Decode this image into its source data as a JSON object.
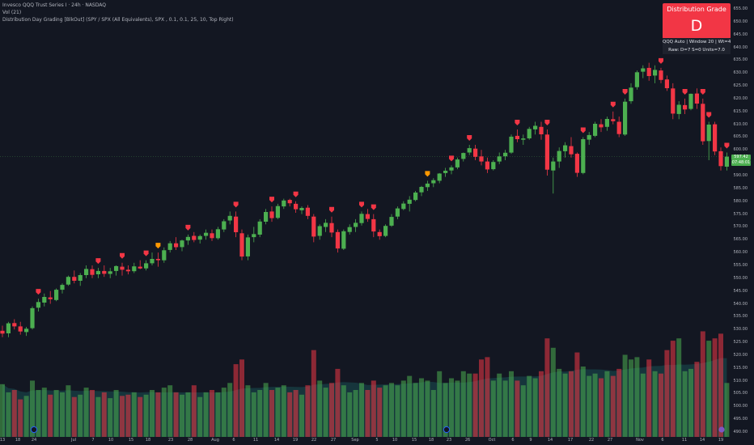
{
  "header": {
    "symbol_line": "Invesco QQQ Trust Series I · 24h · NASDAQ",
    "vol_line": "Vol (21)",
    "indicator_line": "Distribution Day Grading [BlkOut] (SPY / SPX (All Equivalents), SPX , 0.1, 0.1, 25, 10, Top Right)"
  },
  "grade_panel": {
    "title": "Distribution Grade",
    "grade": "D",
    "info_line": "QQQ Auto | Window 20 | Wt=4.35",
    "raw_line": "Raw: D=7 S=0 Units=7.0"
  },
  "price_axis": {
    "ticks": [
      "655.00",
      "650.00",
      "645.00",
      "640.00",
      "635.00",
      "630.00",
      "625.00",
      "620.00",
      "615.00",
      "610.00",
      "605.00",
      "600.00",
      "595.00",
      "590.00",
      "585.00",
      "580.00",
      "575.00",
      "570.00",
      "565.00",
      "560.00",
      "555.00",
      "550.00",
      "545.00",
      "540.00",
      "535.00",
      "530.00",
      "525.00",
      "520.00",
      "515.00",
      "510.00",
      "505.00",
      "500.00",
      "495.00",
      "490.00"
    ],
    "last_price": "597.42",
    "countdown": "07:48:01"
  },
  "time_axis": {
    "labels": [
      "13",
      "18",
      "24",
      "Jul",
      "7",
      "10",
      "15",
      "18",
      "23",
      "28",
      "Aug",
      "6",
      "11",
      "14",
      "19",
      "22",
      "27",
      "Sep",
      "5",
      "10",
      "15",
      "18",
      "23",
      "26",
      "Oct",
      "6",
      "9",
      "14",
      "17",
      "22",
      "27",
      "Nov",
      "6",
      "11",
      "14",
      "19"
    ]
  },
  "colors": {
    "background": "#131722",
    "up": "#4caf50",
    "down": "#f23645",
    "distribution_marker": "#f23645",
    "stall_marker": "#ff9800",
    "grade_box": "#f23645"
  },
  "chart_data": {
    "type": "candlestick",
    "y_range": [
      490,
      655
    ],
    "candles": [
      [
        529.5,
        531.5,
        527,
        528.4
      ],
      [
        528.5,
        533,
        527,
        532.4
      ],
      [
        532.5,
        534,
        530,
        531.2
      ],
      [
        531.2,
        533,
        528,
        529.2
      ],
      [
        529,
        531,
        527.5,
        530.3
      ],
      [
        530.5,
        539,
        530,
        538.3
      ],
      [
        538.5,
        542,
        537,
        540.7
      ],
      [
        540.5,
        544,
        539,
        542.7
      ],
      [
        542.5,
        545,
        540,
        541.8
      ],
      [
        541.5,
        546,
        541,
        545.5
      ],
      [
        545.5,
        548,
        544,
        547.4
      ],
      [
        547.5,
        551,
        547,
        550.5
      ],
      [
        550.5,
        553,
        548,
        549
      ],
      [
        549,
        552,
        547,
        551.2
      ],
      [
        551.2,
        555,
        550,
        553.6
      ],
      [
        553.5,
        555,
        550,
        551.3
      ],
      [
        551.5,
        554,
        550,
        552.8
      ],
      [
        552.8,
        555,
        550.5,
        551.7
      ],
      [
        551.7,
        554,
        550,
        552.7
      ],
      [
        552.8,
        555,
        551,
        554.7
      ],
      [
        554.5,
        556,
        551,
        553.3
      ],
      [
        553.3,
        555,
        551.5,
        552.7
      ],
      [
        552.7,
        556,
        552,
        554.6
      ],
      [
        554.5,
        557,
        553.5,
        553.8
      ],
      [
        553.8,
        557,
        553,
        555.8
      ],
      [
        555.8,
        560,
        555,
        557.5
      ],
      [
        557.5,
        560,
        554.5,
        557
      ],
      [
        557,
        562,
        556,
        560.9
      ],
      [
        561,
        564.5,
        560,
        563.6
      ],
      [
        563.6,
        566,
        561,
        562.1
      ],
      [
        562.1,
        565,
        560.5,
        564.7
      ],
      [
        564.7,
        567,
        563,
        566.1
      ],
      [
        566.5,
        568,
        564,
        564.9
      ],
      [
        565,
        567,
        563.5,
        566.4
      ],
      [
        566.5,
        569,
        565,
        567.7
      ],
      [
        567.5,
        569,
        564.5,
        565.6
      ],
      [
        565.6,
        570,
        565,
        569.1
      ],
      [
        569,
        573,
        568,
        572.2
      ],
      [
        572.5,
        576,
        571,
        574.3
      ],
      [
        574,
        576,
        566,
        567.9
      ],
      [
        567.5,
        569,
        557,
        558.4
      ],
      [
        558.5,
        567,
        557,
        565.9
      ],
      [
        566,
        570,
        564,
        567.2
      ],
      [
        567,
        573,
        566,
        572.1
      ],
      [
        572,
        577,
        571,
        575.8
      ],
      [
        576,
        578,
        572,
        573.4
      ],
      [
        573.5,
        579,
        573,
        578.1
      ],
      [
        578,
        581,
        577,
        580.3
      ],
      [
        580.5,
        581,
        578,
        579.2
      ],
      [
        579,
        580,
        575.5,
        576.9
      ],
      [
        576.5,
        578,
        575,
        577.4
      ],
      [
        577.5,
        578.5,
        573,
        574.3
      ],
      [
        574,
        575,
        564,
        566.2
      ],
      [
        566.5,
        571,
        565,
        570.3
      ],
      [
        570,
        573,
        568,
        571.6
      ],
      [
        571.5,
        574,
        566,
        567.8
      ],
      [
        568,
        569,
        560,
        561.6
      ],
      [
        561.5,
        569,
        561,
        568.3
      ],
      [
        568,
        571,
        567,
        569.9
      ],
      [
        570,
        573,
        568,
        571.6
      ],
      [
        571.5,
        576,
        570.5,
        575.1
      ],
      [
        575,
        577,
        572,
        573.1
      ],
      [
        573,
        575,
        566,
        568.2
      ],
      [
        568,
        569,
        565,
        566.4
      ],
      [
        566.5,
        571,
        566,
        570.4
      ],
      [
        570.5,
        575,
        570,
        573.9
      ],
      [
        574,
        578,
        573,
        577.2
      ],
      [
        577,
        580,
        576.5,
        579.1
      ],
      [
        579,
        582,
        576,
        580.6
      ],
      [
        580.5,
        584,
        580,
        583.4
      ],
      [
        583.5,
        586,
        582,
        585.6
      ],
      [
        585.5,
        588,
        584,
        586.9
      ],
      [
        587,
        589,
        585.5,
        588.2
      ],
      [
        588,
        591,
        587,
        590.8
      ],
      [
        591,
        593,
        589.5,
        591.9
      ],
      [
        592,
        594,
        590.5,
        593.2
      ],
      [
        593.2,
        597,
        592.5,
        596.3
      ],
      [
        596.5,
        599,
        595.5,
        598.8
      ],
      [
        599,
        602,
        598,
        600.7
      ],
      [
        600.5,
        602,
        596,
        597.3
      ],
      [
        597.5,
        600,
        594,
        595.5
      ],
      [
        595.5,
        597,
        591,
        592.4
      ],
      [
        592.5,
        596,
        592,
        595.3
      ],
      [
        595.5,
        599,
        594.5,
        597.5
      ],
      [
        597.5,
        600,
        596,
        598.9
      ],
      [
        599,
        606,
        598.5,
        605.2
      ],
      [
        605.5,
        608,
        603,
        604.2
      ],
      [
        604,
        606,
        602,
        604.5
      ],
      [
        604.5,
        609,
        604,
        608.2
      ],
      [
        608,
        611,
        606,
        609.4
      ],
      [
        609,
        611,
        604,
        606.1
      ],
      [
        606,
        608,
        590,
        592.3
      ],
      [
        592,
        597,
        583,
        595.5
      ],
      [
        595.5,
        601,
        593,
        599.6
      ],
      [
        599.5,
        603,
        597,
        601.8
      ],
      [
        601.5,
        605,
        597,
        598.3
      ],
      [
        598.5,
        599,
        589.5,
        591.1
      ],
      [
        591,
        605,
        590.5,
        604.2
      ],
      [
        604,
        607,
        602,
        605.8
      ],
      [
        605.5,
        611,
        605,
        610.2
      ],
      [
        610,
        612,
        607,
        608.8
      ],
      [
        609,
        613,
        607.5,
        612.1
      ],
      [
        612,
        615,
        610,
        611.2
      ],
      [
        611,
        613,
        605,
        606.2
      ],
      [
        606,
        620,
        605.5,
        618.8
      ],
      [
        619,
        626,
        618,
        624.3
      ],
      [
        624.5,
        631,
        623.5,
        630.3
      ],
      [
        630.5,
        633,
        628,
        631.8
      ],
      [
        632,
        634,
        627,
        628.8
      ],
      [
        629,
        633,
        626,
        631.2
      ],
      [
        631,
        632,
        626,
        627.3
      ],
      [
        627.5,
        629,
        623,
        624.1
      ],
      [
        624,
        626,
        612,
        614.2
      ],
      [
        614,
        619,
        612,
        617.6
      ],
      [
        617.5,
        620,
        614,
        615.8
      ],
      [
        616,
        622,
        615.5,
        621.9
      ],
      [
        622,
        624,
        616,
        618.1
      ],
      [
        618,
        620,
        602,
        603.4
      ],
      [
        603.5,
        611,
        596,
        609.9
      ],
      [
        610,
        611,
        598,
        599.4
      ],
      [
        599.5,
        601,
        592,
        593.7
      ],
      [
        593.5,
        599,
        592,
        597.4
      ]
    ],
    "volumes": [
      [
        45,
        1
      ],
      [
        38,
        1
      ],
      [
        40,
        -1
      ],
      [
        32,
        -1
      ],
      [
        35,
        1
      ],
      [
        48,
        1
      ],
      [
        40,
        1
      ],
      [
        42,
        1
      ],
      [
        36,
        -1
      ],
      [
        40,
        1
      ],
      [
        38,
        1
      ],
      [
        44,
        1
      ],
      [
        34,
        -1
      ],
      [
        36,
        1
      ],
      [
        42,
        1
      ],
      [
        40,
        -1
      ],
      [
        34,
        1
      ],
      [
        38,
        -1
      ],
      [
        33,
        1
      ],
      [
        40,
        1
      ],
      [
        35,
        -1
      ],
      [
        36,
        -1
      ],
      [
        38,
        1
      ],
      [
        34,
        -1
      ],
      [
        36,
        1
      ],
      [
        40,
        1
      ],
      [
        38,
        -1
      ],
      [
        42,
        1
      ],
      [
        44,
        1
      ],
      [
        38,
        -1
      ],
      [
        36,
        1
      ],
      [
        38,
        1
      ],
      [
        44,
        -1
      ],
      [
        34,
        1
      ],
      [
        38,
        1
      ],
      [
        40,
        -1
      ],
      [
        38,
        1
      ],
      [
        42,
        1
      ],
      [
        46,
        1
      ],
      [
        62,
        -1
      ],
      [
        66,
        -1
      ],
      [
        44,
        1
      ],
      [
        38,
        1
      ],
      [
        40,
        1
      ],
      [
        46,
        1
      ],
      [
        40,
        -1
      ],
      [
        42,
        1
      ],
      [
        44,
        1
      ],
      [
        38,
        -1
      ],
      [
        40,
        -1
      ],
      [
        36,
        1
      ],
      [
        44,
        -1
      ],
      [
        74,
        -1
      ],
      [
        48,
        1
      ],
      [
        42,
        1
      ],
      [
        46,
        -1
      ],
      [
        58,
        -1
      ],
      [
        44,
        1
      ],
      [
        38,
        1
      ],
      [
        40,
        1
      ],
      [
        46,
        1
      ],
      [
        40,
        -1
      ],
      [
        48,
        -1
      ],
      [
        42,
        -1
      ],
      [
        44,
        1
      ],
      [
        46,
        1
      ],
      [
        44,
        1
      ],
      [
        48,
        1
      ],
      [
        52,
        1
      ],
      [
        46,
        1
      ],
      [
        50,
        1
      ],
      [
        48,
        1
      ],
      [
        40,
        1
      ],
      [
        56,
        1
      ],
      [
        46,
        1
      ],
      [
        50,
        1
      ],
      [
        48,
        1
      ],
      [
        56,
        1
      ],
      [
        54,
        1
      ],
      [
        54,
        -1
      ],
      [
        66,
        -1
      ],
      [
        68,
        -1
      ],
      [
        48,
        1
      ],
      [
        54,
        1
      ],
      [
        48,
        1
      ],
      [
        56,
        1
      ],
      [
        48,
        -1
      ],
      [
        44,
        1
      ],
      [
        52,
        1
      ],
      [
        50,
        1
      ],
      [
        56,
        -1
      ],
      [
        84,
        -1
      ],
      [
        76,
        1
      ],
      [
        58,
        1
      ],
      [
        54,
        1
      ],
      [
        56,
        -1
      ],
      [
        72,
        -1
      ],
      [
        60,
        1
      ],
      [
        52,
        1
      ],
      [
        54,
        1
      ],
      [
        50,
        -1
      ],
      [
        56,
        1
      ],
      [
        52,
        -1
      ],
      [
        58,
        -1
      ],
      [
        70,
        1
      ],
      [
        66,
        1
      ],
      [
        68,
        1
      ],
      [
        54,
        1
      ],
      [
        66,
        -1
      ],
      [
        56,
        1
      ],
      [
        54,
        -1
      ],
      [
        74,
        -1
      ],
      [
        82,
        -1
      ],
      [
        84,
        1
      ],
      [
        56,
        1
      ],
      [
        58,
        1
      ],
      [
        64,
        -1
      ],
      [
        90,
        -1
      ],
      [
        82,
        1
      ],
      [
        84,
        -1
      ],
      [
        88,
        -1
      ],
      [
        46,
        1
      ]
    ],
    "distribution_days": [
      6,
      16,
      20,
      24,
      31,
      39,
      45,
      49,
      55,
      60,
      62,
      75,
      78,
      86,
      91,
      97,
      102,
      104,
      110,
      114,
      117,
      118,
      121
    ],
    "stall_days": [
      26,
      71
    ]
  }
}
